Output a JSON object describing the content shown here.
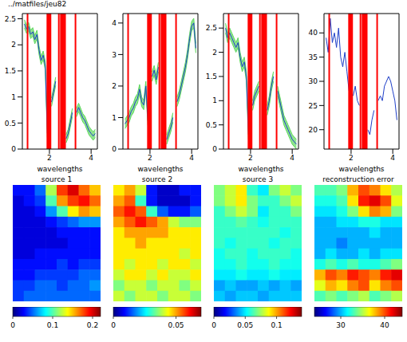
{
  "chart_data": [
    {
      "type": "line",
      "title": "../matfiles/jeu82",
      "x_label": "wavelengths",
      "x": [
        0.8,
        0.9,
        1.0,
        1.1,
        1.2,
        1.3,
        1.4,
        1.5,
        1.6,
        1.7,
        1.8,
        1.9,
        2.0,
        2.1,
        2.2,
        2.3,
        2.4,
        2.5,
        2.6,
        2.7,
        2.8,
        2.9,
        3.0,
        3.1,
        3.2,
        3.3,
        3.4,
        3.5,
        3.6,
        3.7,
        3.8,
        3.9,
        4.0,
        4.1,
        4.2
      ],
      "values": [
        2.4,
        2.3,
        2.35,
        2.2,
        2.25,
        2.1,
        2.2,
        1.9,
        1.7,
        1.8,
        1.6,
        0.3,
        null,
        0.9,
        1.1,
        1.3,
        null,
        null,
        null,
        null,
        0.2,
        0.3,
        0.5,
        0.7,
        null,
        0.7,
        0.8,
        0.7,
        0.6,
        0.55,
        0.45,
        0.35,
        0.3,
        0.25,
        0.3
      ],
      "color": "#1f3fc8",
      "band": {
        "error": 0.08,
        "color": "#5fd85f"
      },
      "vlines": {
        "x": [
          0.95,
          1.9,
          1.95,
          2.0,
          2.05,
          2.45,
          2.55,
          2.6,
          2.65,
          2.7,
          2.75,
          3.25
        ],
        "color": "#ff0000"
      },
      "xlim": [
        0.7,
        4.3
      ],
      "xticks": [
        2,
        4
      ],
      "ylim": [
        0,
        2.6
      ],
      "yticks": [
        0,
        0.5,
        1,
        1.5,
        2,
        2.5
      ]
    },
    {
      "type": "line",
      "x_label": "wavelengths",
      "x": [
        0.8,
        0.9,
        1.0,
        1.1,
        1.2,
        1.3,
        1.4,
        1.5,
        1.6,
        1.7,
        1.8,
        1.9,
        2.0,
        2.1,
        2.2,
        2.3,
        2.4,
        2.5,
        2.6,
        2.7,
        2.8,
        2.9,
        3.0,
        3.1,
        3.2,
        3.3,
        3.4,
        3.5,
        3.6,
        3.7,
        3.8,
        3.9,
        4.0,
        4.1,
        4.2
      ],
      "values": [
        0.8,
        0.9,
        1.0,
        1.2,
        1.3,
        1.5,
        1.6,
        1.9,
        1.5,
        1.4,
        2.0,
        0.9,
        null,
        2.3,
        2.5,
        2.2,
        2.6,
        null,
        null,
        null,
        0.3,
        0.5,
        0.7,
        1.0,
        null,
        1.5,
        1.7,
        2.0,
        2.3,
        2.6,
        3.0,
        3.5,
        3.9,
        4.0,
        3.2
      ],
      "color": "#1f3fc8",
      "band": {
        "error": 0.15,
        "color": "#5fd85f"
      },
      "vlines": {
        "x": [
          0.95,
          1.9,
          1.95,
          2.0,
          2.05,
          2.45,
          2.55,
          2.6,
          2.65,
          2.7,
          2.75,
          3.25
        ],
        "color": "#ff0000"
      },
      "xlim": [
        0.7,
        4.3
      ],
      "xticks": [
        2,
        4
      ],
      "ylim": [
        0,
        4.3
      ],
      "yticks": [
        0,
        1,
        2,
        3,
        4
      ]
    },
    {
      "type": "line",
      "x_label": "wavelengths",
      "x": [
        0.8,
        0.9,
        1.0,
        1.1,
        1.2,
        1.3,
        1.4,
        1.5,
        1.6,
        1.7,
        1.8,
        1.9,
        2.0,
        2.1,
        2.2,
        2.3,
        2.4,
        2.5,
        2.6,
        2.7,
        2.8,
        2.9,
        3.0,
        3.1,
        3.2,
        3.3,
        3.4,
        3.5,
        3.6,
        3.7,
        3.8,
        3.9,
        4.0,
        4.1,
        4.2
      ],
      "values": [
        2.5,
        2.3,
        2.4,
        2.3,
        2.2,
        2.1,
        2.2,
        1.9,
        1.7,
        1.8,
        1.5,
        0.3,
        null,
        0.9,
        1.1,
        1.2,
        1.3,
        null,
        null,
        null,
        0.8,
        1.0,
        1.3,
        1.5,
        null,
        1.2,
        1.0,
        0.8,
        0.6,
        0.5,
        0.4,
        0.3,
        0.2,
        0.15,
        0.1
      ],
      "color": "#1f3fc8",
      "band": {
        "error": 0.1,
        "color": "#5fd85f"
      },
      "vlines": {
        "x": [
          0.95,
          1.9,
          1.95,
          2.0,
          2.05,
          2.45,
          2.55,
          2.6,
          2.65,
          2.7,
          2.75,
          3.25
        ],
        "color": "#ff0000"
      },
      "xlim": [
        0.7,
        4.3
      ],
      "xticks": [
        2,
        4
      ],
      "ylim": [
        0,
        2.8
      ],
      "yticks": [
        0,
        0.5,
        1,
        1.5,
        2,
        2.5
      ]
    },
    {
      "type": "line",
      "x_label": "wavelengths",
      "x": [
        0.8,
        0.9,
        1.0,
        1.1,
        1.2,
        1.3,
        1.4,
        1.5,
        1.6,
        1.7,
        1.8,
        1.9,
        2.0,
        2.1,
        2.2,
        2.3,
        2.4,
        2.5,
        2.6,
        2.7,
        2.8,
        2.9,
        3.0,
        3.1,
        3.2,
        3.3,
        3.4,
        3.5,
        3.6,
        3.7,
        3.8,
        3.9,
        4.0,
        4.1,
        4.2
      ],
      "values": [
        39,
        36,
        43,
        38,
        40,
        37,
        41,
        35,
        33,
        36,
        32,
        28,
        null,
        27,
        29,
        26,
        25,
        null,
        null,
        null,
        20,
        19,
        22,
        24,
        null,
        26,
        27,
        26,
        29,
        30,
        31,
        30,
        28,
        26,
        22
      ],
      "color": "#1f3fc8",
      "vlines": {
        "x": [
          0.95,
          1.9,
          1.95,
          2.0,
          2.05,
          2.45,
          2.55,
          2.6,
          2.65,
          2.7,
          2.75,
          3.25
        ],
        "color": "#ff0000"
      },
      "xlim": [
        0.7,
        4.3
      ],
      "xticks": [
        2,
        4
      ],
      "ylim": [
        16,
        44
      ],
      "yticks": [
        20,
        25,
        30,
        35,
        40
      ]
    },
    {
      "type": "heatmap",
      "title": "source 1",
      "tick_labels": false,
      "cells": [
        [
          0.03,
          0.03,
          0.05,
          0.12,
          0.18,
          0.2,
          0.17,
          0.15
        ],
        [
          0.02,
          0.03,
          0.04,
          0.1,
          0.16,
          0.18,
          0.19,
          0.17
        ],
        [
          0.02,
          0.02,
          0.03,
          0.06,
          0.1,
          0.14,
          0.16,
          0.15
        ],
        [
          0.02,
          0.02,
          0.02,
          0.03,
          0.04,
          0.05,
          0.06,
          0.06
        ],
        [
          0.02,
          0.02,
          0.02,
          0.02,
          0.03,
          0.03,
          0.03,
          0.03
        ],
        [
          0.02,
          0.02,
          0.02,
          0.02,
          0.02,
          0.03,
          0.03,
          0.03
        ],
        [
          0.02,
          0.02,
          0.03,
          0.03,
          0.03,
          0.03,
          0.03,
          0.03
        ],
        [
          0.03,
          0.03,
          0.03,
          0.03,
          0.04,
          0.03,
          0.04,
          0.04
        ],
        [
          0.03,
          0.03,
          0.04,
          0.04,
          0.04,
          0.04,
          0.05,
          0.05
        ],
        [
          0.04,
          0.04,
          0.05,
          0.05,
          0.04,
          0.05,
          0.05,
          0.06
        ],
        [
          0.04,
          0.05,
          0.05,
          0.05,
          0.05,
          0.05,
          0.05,
          0.05
        ]
      ],
      "colorbar": {
        "lim": [
          0,
          0.22
        ],
        "ticks": [
          0,
          0.1,
          0.2
        ]
      }
    },
    {
      "type": "heatmap",
      "title": "source 2",
      "tick_labels": false,
      "cells": [
        [
          0.045,
          0.05,
          0.04,
          0.01,
          0.005,
          0.005,
          0.01,
          0.01
        ],
        [
          0.05,
          0.055,
          0.03,
          0.01,
          0.005,
          0.005,
          0.005,
          0.01
        ],
        [
          0.055,
          0.06,
          0.055,
          0.03,
          0.015,
          0.01,
          0.01,
          0.015
        ],
        [
          0.05,
          0.055,
          0.06,
          0.055,
          0.05,
          0.04,
          0.035,
          0.035
        ],
        [
          0.045,
          0.05,
          0.05,
          0.05,
          0.05,
          0.045,
          0.045,
          0.045
        ],
        [
          0.045,
          0.045,
          0.05,
          0.045,
          0.045,
          0.045,
          0.045,
          0.045
        ],
        [
          0.045,
          0.045,
          0.045,
          0.045,
          0.045,
          0.045,
          0.04,
          0.045
        ],
        [
          0.045,
          0.04,
          0.045,
          0.045,
          0.04,
          0.045,
          0.045,
          0.04
        ],
        [
          0.04,
          0.045,
          0.045,
          0.04,
          0.045,
          0.04,
          0.04,
          0.045
        ],
        [
          0.035,
          0.04,
          0.04,
          0.035,
          0.04,
          0.04,
          0.035,
          0.04
        ],
        [
          0.04,
          0.035,
          0.04,
          0.04,
          0.035,
          0.04,
          0.04,
          0.035
        ]
      ],
      "colorbar": {
        "lim": [
          0,
          0.07
        ],
        "ticks": [
          0,
          0.05
        ]
      }
    },
    {
      "type": "heatmap",
      "title": "source 3",
      "tick_labels": false,
      "cells": [
        [
          0.07,
          0.08,
          0.09,
          0.06,
          0.05,
          0.07,
          0.08,
          0.07
        ],
        [
          0.07,
          0.08,
          0.09,
          0.07,
          0.06,
          0.06,
          0.07,
          0.08
        ],
        [
          0.06,
          0.07,
          0.08,
          0.07,
          0.05,
          0.06,
          0.06,
          0.07
        ],
        [
          0.06,
          0.06,
          0.065,
          0.06,
          0.055,
          0.06,
          0.06,
          0.06
        ],
        [
          0.06,
          0.06,
          0.06,
          0.06,
          0.06,
          0.06,
          0.055,
          0.06
        ],
        [
          0.06,
          0.055,
          0.06,
          0.06,
          0.06,
          0.055,
          0.06,
          0.06
        ],
        [
          0.055,
          0.06,
          0.06,
          0.055,
          0.06,
          0.06,
          0.06,
          0.055
        ],
        [
          0.055,
          0.055,
          0.06,
          0.055,
          0.055,
          0.06,
          0.055,
          0.055
        ],
        [
          0.05,
          0.05,
          0.055,
          0.05,
          0.05,
          0.055,
          0.05,
          0.05
        ],
        [
          0.04,
          0.045,
          0.04,
          0.04,
          0.045,
          0.04,
          0.045,
          0.04
        ],
        [
          0.045,
          0.04,
          0.045,
          0.045,
          0.04,
          0.045,
          0.045,
          0.045
        ]
      ],
      "colorbar": {
        "lim": [
          0,
          0.14
        ],
        "ticks": [
          0,
          0.05,
          0.1
        ]
      }
    },
    {
      "type": "heatmap",
      "title": "reconstruction error",
      "tick_labels": false,
      "cells": [
        [
          33,
          33,
          34,
          38,
          40,
          39,
          37,
          35
        ],
        [
          32,
          32,
          33,
          37,
          41,
          42,
          40,
          36
        ],
        [
          31,
          31,
          32,
          34,
          37,
          39,
          38,
          34
        ],
        [
          30,
          30,
          31,
          31,
          32,
          32,
          31,
          31
        ],
        [
          30,
          30,
          30,
          30,
          30,
          31,
          30,
          30
        ],
        [
          30,
          30,
          29,
          30,
          30,
          30,
          30,
          30
        ],
        [
          30,
          31,
          30,
          30,
          31,
          30,
          31,
          31
        ],
        [
          32,
          33,
          32,
          33,
          32,
          32,
          33,
          34
        ],
        [
          38,
          40,
          39,
          41,
          40,
          39,
          41,
          42
        ],
        [
          36,
          38,
          37,
          39,
          40,
          37,
          39,
          40
        ],
        [
          33,
          34,
          33,
          34,
          35,
          33,
          34,
          35
        ]
      ],
      "colorbar": {
        "lim": [
          24,
          44
        ],
        "ticks": [
          30,
          40
        ]
      }
    }
  ]
}
